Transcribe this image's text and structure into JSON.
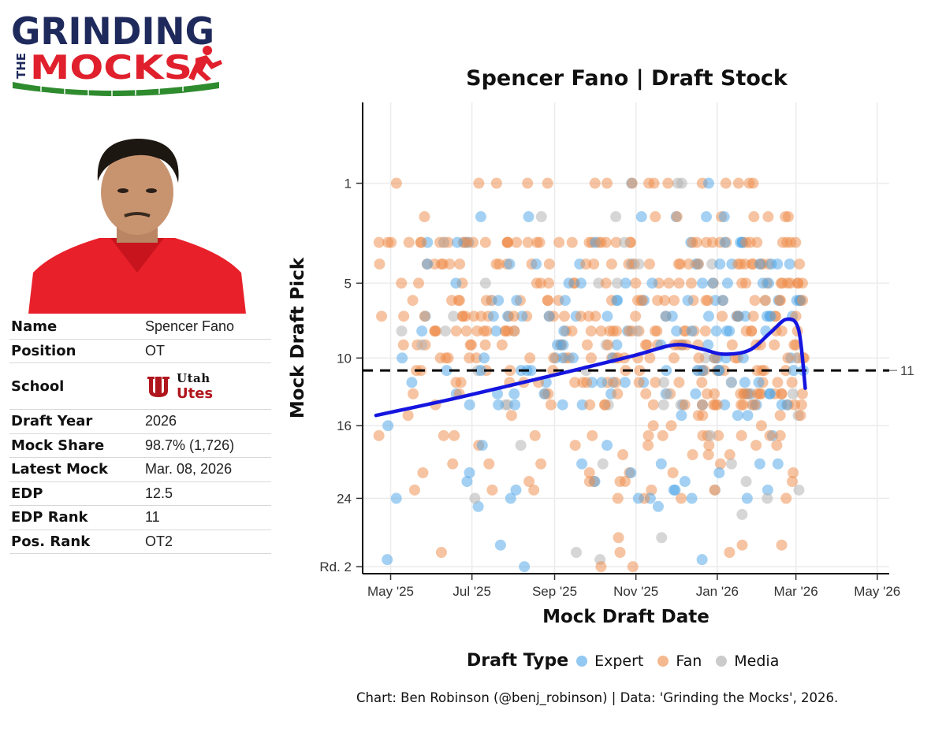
{
  "logo": {
    "line1": "GRINDING",
    "line2_prefix": "THE",
    "line2": "MOCKS",
    "colors": {
      "navy": "#1f2a5c",
      "red": "#e0202c",
      "green": "#2e8b2e"
    }
  },
  "player": {
    "rows": [
      {
        "key": "Name",
        "value": "Spencer Fano"
      },
      {
        "key": "Position",
        "value": "OT"
      },
      {
        "key": "School",
        "value_top": "Utah",
        "value_bottom": "Utes"
      },
      {
        "key": "Draft Year",
        "value": "2026"
      },
      {
        "key": "Mock Share",
        "value": "98.7% (1,726)"
      },
      {
        "key": "Latest Mock",
        "value": "Mar. 08, 2026"
      },
      {
        "key": "EDP",
        "value": "12.5"
      },
      {
        "key": "EDP Rank",
        "value": "11"
      },
      {
        "key": "Pos. Rank",
        "value": "OT2"
      }
    ],
    "shirt_color": "#e8202a"
  },
  "chart_data": {
    "type": "scatter",
    "title": "Spencer Fano | Draft Stock",
    "xlabel": "Mock Draft Date",
    "ylabel": "Mock Draft Pick",
    "x_ticks": [
      "May '25",
      "Jul '25",
      "Sep '25",
      "Nov '25",
      "Jan '26",
      "Mar '26",
      "May '26"
    ],
    "x_tick_dates": [
      "2025-05-01",
      "2025-07-01",
      "2025-09-01",
      "2025-11-01",
      "2026-01-01",
      "2026-03-01",
      "2026-05-01"
    ],
    "y_ticks": [
      "1",
      "5",
      "10",
      "16",
      "24",
      "Rd. 2"
    ],
    "y_tick_values": [
      1,
      5,
      10,
      16,
      24,
      33
    ],
    "y_scale": "sqrt",
    "y_reversed": true,
    "xlim": [
      "2025-04-10",
      "2026-05-10"
    ],
    "ylim": [
      0,
      34
    ],
    "grid": true,
    "reference_line": {
      "value": 11,
      "label": "11",
      "style": "dashed"
    },
    "legend_title": "Draft Type",
    "legend_position": "bottom",
    "series": [
      {
        "name": "Expert",
        "color": "#4aa3e8"
      },
      {
        "name": "Fan",
        "color": "#ee8a45"
      },
      {
        "name": "Media",
        "color": "#b5b5b5"
      }
    ],
    "trend": {
      "color": "#1515e0",
      "points": [
        [
          "2025-04-20",
          15.0
        ],
        [
          "2025-06-15",
          13.5
        ],
        [
          "2025-08-01",
          12.2
        ],
        [
          "2025-09-15",
          11.0
        ],
        [
          "2025-10-31",
          9.8
        ],
        [
          "2025-11-30",
          9.0
        ],
        [
          "2025-12-20",
          9.3
        ],
        [
          "2026-01-05",
          9.7
        ],
        [
          "2026-01-25",
          9.4
        ],
        [
          "2026-02-10",
          8.1
        ],
        [
          "2026-02-22",
          7.2
        ],
        [
          "2026-03-03",
          7.9
        ],
        [
          "2026-03-08",
          12.5
        ]
      ]
    }
  },
  "caption": "Chart: Ben Robinson (@benj_robinson) | Data: 'Grinding the Mocks', 2026."
}
